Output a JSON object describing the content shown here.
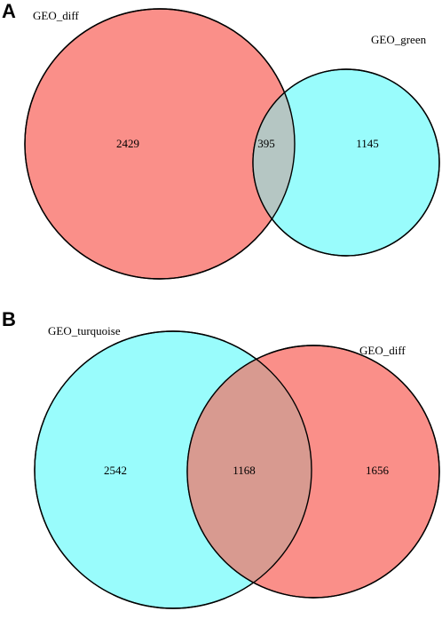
{
  "panels": [
    {
      "letter": "A",
      "sets": [
        {
          "name": "GEO_diff",
          "color": "#fa8f89"
        },
        {
          "name": "GEO_green",
          "color": "#99fcfc"
        }
      ],
      "intersection_color": "#b5c6c3",
      "counts": {
        "left_only": "2429",
        "both": "395",
        "right_only": "1145"
      }
    },
    {
      "letter": "B",
      "sets": [
        {
          "name": "GEO_turquoise",
          "color": "#99fcfc"
        },
        {
          "name": "GEO_diff",
          "color": "#fa8f89"
        }
      ],
      "intersection_color": "#d89a90",
      "counts": {
        "left_only": "2542",
        "both": "1168",
        "right_only": "1656"
      }
    }
  ]
}
